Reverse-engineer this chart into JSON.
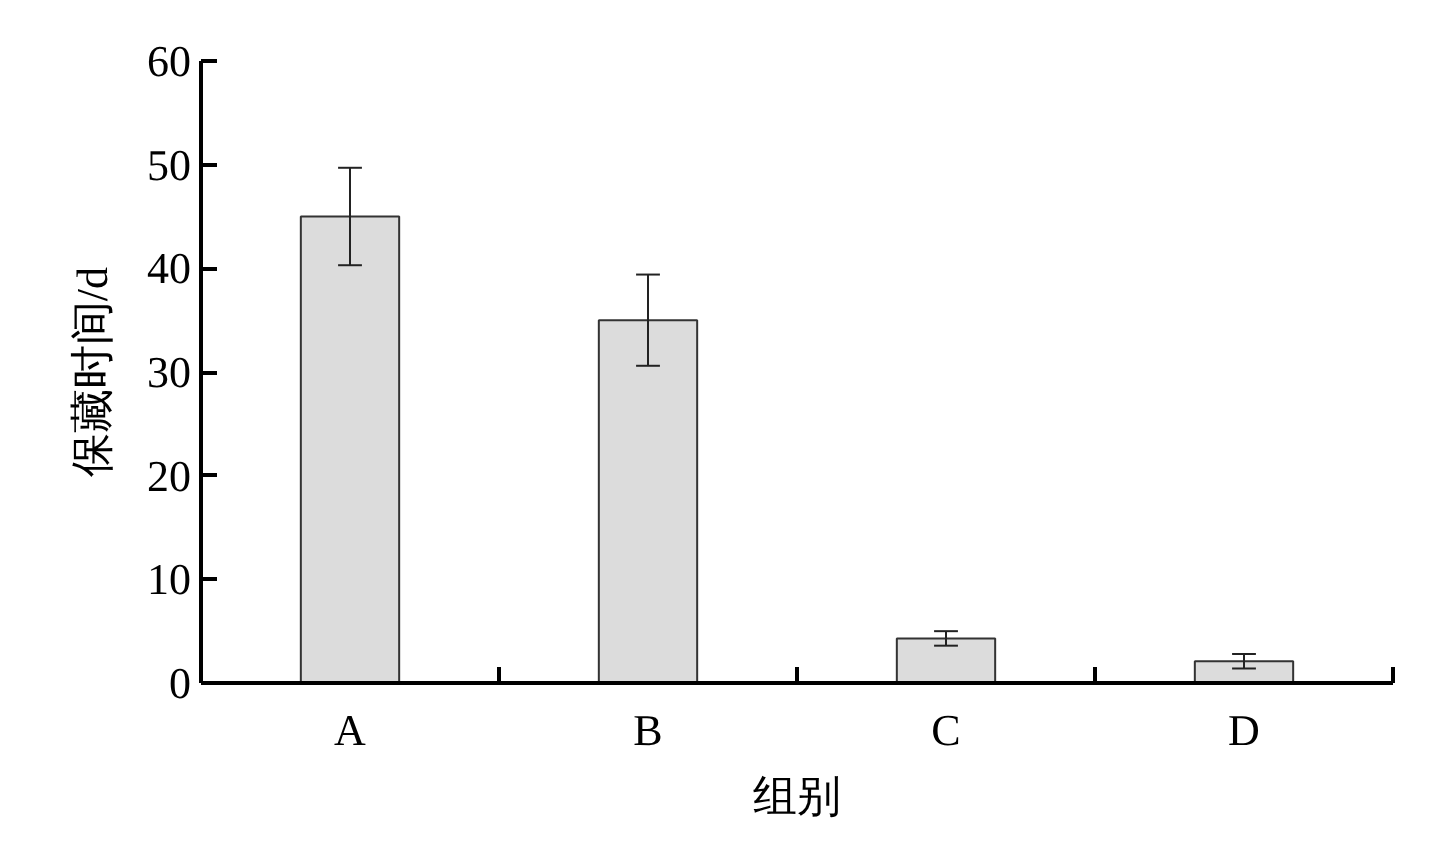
{
  "chart_data": {
    "type": "bar",
    "categories": [
      "A",
      "B",
      "C",
      "D"
    ],
    "values": [
      45,
      35,
      4.3,
      2.1
    ],
    "errors": [
      4.7,
      4.4,
      0.7,
      0.7
    ],
    "color": "#dcdcdc",
    "xlabel": "组别",
    "ylabel": "保藏时间/d",
    "ylim": [
      0,
      60
    ],
    "yticks": [
      0,
      10,
      20,
      30,
      40,
      50,
      60
    ],
    "grid": false
  }
}
